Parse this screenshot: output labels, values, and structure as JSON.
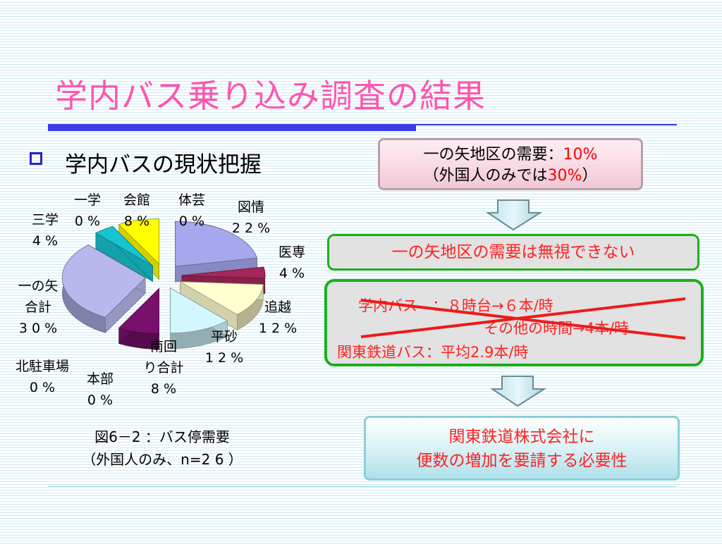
{
  "title": "学内バス乗り込み調査の結果",
  "bullet": "学内バスの現状把握",
  "chart_data": {
    "type": "pie",
    "title": "図6－2 ：バス停需要",
    "subtitle": "（外国人のみ、n=2 6 ）",
    "slices": [
      {
        "name": "図情",
        "value_label": "2 2 %",
        "value": 22,
        "color": "#a7a7ee"
      },
      {
        "name": "医専",
        "value_label": "4 %",
        "value": 4,
        "color": "#a5275a"
      },
      {
        "name": "追越",
        "value_label": "1 2 %",
        "value": 12,
        "color": "#ffffd0"
      },
      {
        "name": "平砂",
        "value_label": "1 2 %",
        "value": 12,
        "color": "#d2f7ff"
      },
      {
        "name": "南回り合計",
        "value_label": "8 %",
        "value": 8,
        "color": "#7a0f6e"
      },
      {
        "name": "本部",
        "value_label": "0 %",
        "value": 0,
        "color": "#cccccc"
      },
      {
        "name": "北駐車場",
        "value_label": "0 %",
        "value": 0,
        "color": "#cccccc"
      },
      {
        "name": "一の矢合計",
        "value_label": "3 0 %",
        "value": 30,
        "color": "#b8b8ef"
      },
      {
        "name": "三学",
        "value_label": "4 %",
        "value": 4,
        "color": "#17c4d0"
      },
      {
        "name": "一学",
        "value_label": "0 %",
        "value": 0,
        "color": "#cccccc"
      },
      {
        "name": "会館",
        "value_label": "8 %",
        "value": 8,
        "color": "#ffff00"
      },
      {
        "name": "体芸",
        "value_label": "0 %",
        "value": 0,
        "color": "#cccccc"
      }
    ]
  },
  "boxes": {
    "demand": {
      "text1": "一の矢地区の需要：",
      "pct1": "10%",
      "text2_open": "（外国人のみでは",
      "pct2": "30%",
      "text2_close": "）"
    },
    "ignore": "一の矢地区の需要は無視できない",
    "bus": {
      "line1": "学内バス　：８時台→６本/時",
      "line2": "その他の時間→4本/時",
      "line3": "関東鉄道バス：平均2.9本/時"
    },
    "request_line1": "関東鉄道株式会社に",
    "request_line2": "便数の増加を要請する必要性"
  },
  "colors": {
    "title": "#ff55b0",
    "rule": "#3a3ae6",
    "box_border_green": "#1ab01a",
    "emphasis_red": "#ff2222"
  }
}
